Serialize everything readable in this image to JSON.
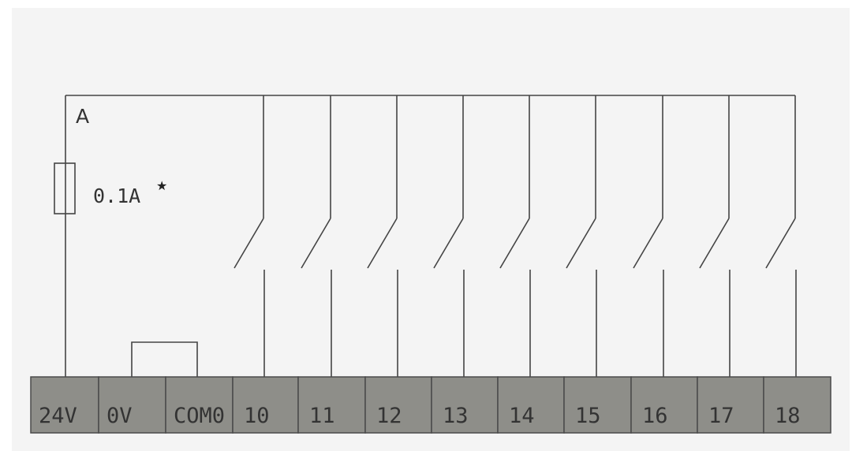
{
  "diagram": {
    "node_label": "A",
    "fuse_rating": "0.1A",
    "fuse_note_mark": "★",
    "terminals": [
      "24V",
      "0V",
      "COM0",
      "10",
      "11",
      "12",
      "13",
      "14",
      "15",
      "16",
      "17",
      "18"
    ],
    "switch_inputs": [
      "10",
      "11",
      "12",
      "13",
      "14",
      "15",
      "16",
      "17",
      "18"
    ],
    "colors": {
      "terminal_fill": "#8e8e89",
      "line": "#444444",
      "background": "#f4f4f4"
    }
  }
}
